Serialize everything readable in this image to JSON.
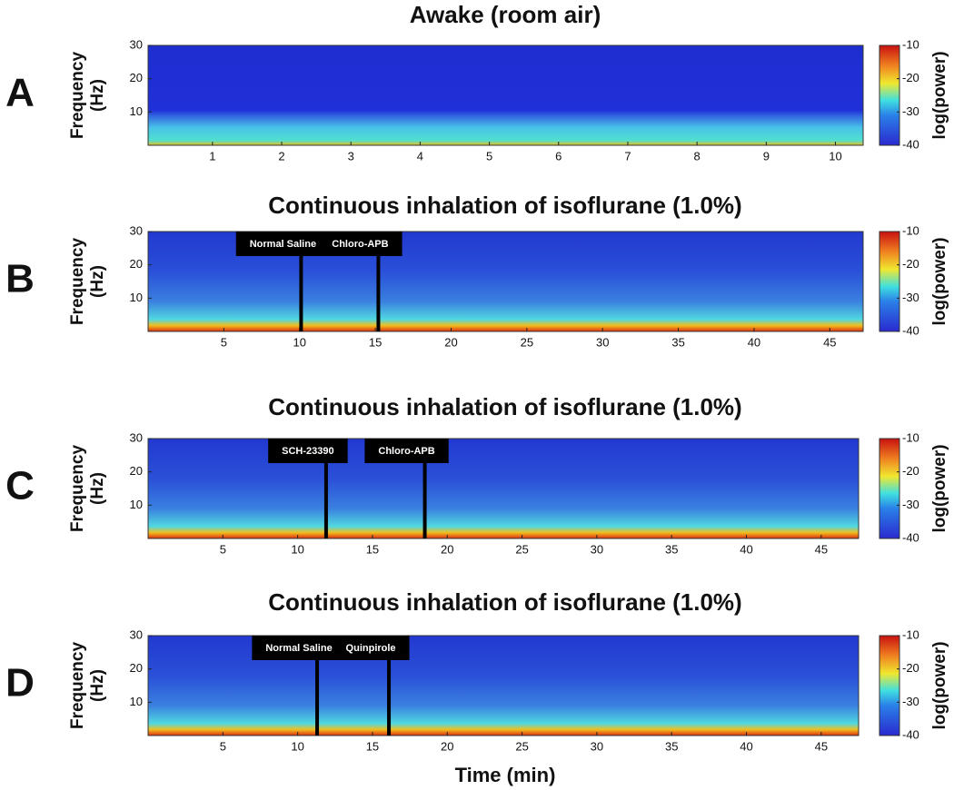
{
  "chart_data": [
    {
      "type": "spectrogram",
      "panel": "A",
      "title": "Awake (room air)",
      "y_label": [
        "Frequency",
        "(Hz)"
      ],
      "xlim": [
        0.07,
        10.4
      ],
      "xticks": [
        1,
        2,
        3,
        4,
        5,
        6,
        7,
        8,
        9,
        10
      ],
      "ylim": [
        0,
        30
      ],
      "yticks": [
        10,
        20,
        30
      ],
      "colorbar_label": "log(power)",
      "clim": [
        -40,
        -10
      ],
      "cticks": [
        -10,
        -20,
        -30,
        -40
      ],
      "annotations": []
    },
    {
      "type": "spectrogram",
      "panel": "B",
      "title": "Continuous inhalation of isoflurane (1.0%)",
      "y_label": [
        "Frequency",
        "(Hz)"
      ],
      "xlim": [
        0,
        47.2
      ],
      "xticks": [
        5,
        10,
        15,
        20,
        25,
        30,
        35,
        40,
        45
      ],
      "ylim": [
        0,
        30
      ],
      "yticks": [
        10,
        20,
        30
      ],
      "colorbar_label": "log(power)",
      "clim": [
        -40,
        -10
      ],
      "cticks": [
        -10,
        -20,
        -30,
        -40
      ],
      "annotations": [
        {
          "label": "Normal Saline",
          "x": 10.1
        },
        {
          "label": "Chloro-APB",
          "x": 15.2
        }
      ]
    },
    {
      "type": "spectrogram",
      "panel": "C",
      "title": "Continuous inhalation of isoflurane (1.0%)",
      "y_label": [
        "Frequency",
        "(Hz)"
      ],
      "xlim": [
        0,
        47.5
      ],
      "xticks": [
        5,
        10,
        15,
        20,
        25,
        30,
        35,
        40,
        45
      ],
      "ylim": [
        0,
        30
      ],
      "yticks": [
        10,
        20,
        30
      ],
      "colorbar_label": "log(power)",
      "clim": [
        -40,
        -10
      ],
      "cticks": [
        -10,
        -20,
        -30,
        -40
      ],
      "annotations": [
        {
          "label": "SCH-23390",
          "x": 11.9
        },
        {
          "label": "Chloro-APB",
          "x": 18.5
        }
      ]
    },
    {
      "type": "spectrogram",
      "panel": "D",
      "title": "Continuous inhalation of isoflurane (1.0%)",
      "y_label": [
        "Frequency",
        "(Hz)"
      ],
      "xlim": [
        0,
        47.5
      ],
      "xticks": [
        5,
        10,
        15,
        20,
        25,
        30,
        35,
        40,
        45
      ],
      "ylim": [
        0,
        30
      ],
      "yticks": [
        10,
        20,
        30
      ],
      "colorbar_label": "log(power)",
      "clim": [
        -40,
        -10
      ],
      "cticks": [
        -10,
        -20,
        -30,
        -40
      ],
      "annotations": [
        {
          "label": "Normal Saline",
          "x": 11.3
        },
        {
          "label": "Quinpirole",
          "x": 16.1
        }
      ],
      "x_label": "Time (min)"
    }
  ]
}
